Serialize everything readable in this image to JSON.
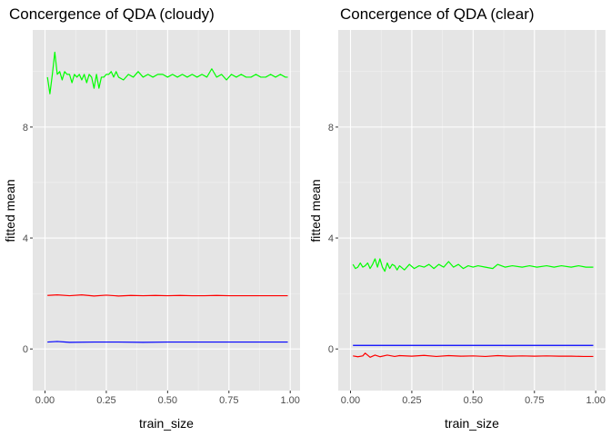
{
  "chart_data": [
    {
      "type": "line",
      "title": "Concergence of QDA (cloudy)",
      "xlabel": "train_size",
      "ylabel": "fitted mean",
      "xlim": [
        -0.05,
        1.04
      ],
      "ylim": [
        -1.5,
        11.5
      ],
      "x_ticks": [
        0,
        0.25,
        0.5,
        0.75,
        1
      ],
      "x_tick_labels": [
        "0.00",
        "0.25",
        "0.50",
        "0.75",
        "1.00"
      ],
      "y_ticks": [
        0,
        4,
        8
      ],
      "y_tick_labels": [
        "0",
        "4",
        "8"
      ],
      "grid": true,
      "legend": "none",
      "series": [
        {
          "color": "#00ff00",
          "x": [
            0.01,
            0.02,
            0.03,
            0.04,
            0.05,
            0.06,
            0.07,
            0.08,
            0.09,
            0.1,
            0.11,
            0.12,
            0.13,
            0.14,
            0.15,
            0.16,
            0.17,
            0.18,
            0.19,
            0.2,
            0.21,
            0.22,
            0.23,
            0.24,
            0.25,
            0.26,
            0.27,
            0.28,
            0.29,
            0.3,
            0.32,
            0.34,
            0.36,
            0.38,
            0.4,
            0.42,
            0.44,
            0.46,
            0.48,
            0.5,
            0.52,
            0.54,
            0.56,
            0.58,
            0.6,
            0.62,
            0.64,
            0.66,
            0.68,
            0.7,
            0.72,
            0.74,
            0.76,
            0.78,
            0.8,
            0.82,
            0.84,
            0.86,
            0.88,
            0.9,
            0.92,
            0.94,
            0.96,
            0.98,
            0.99
          ],
          "y": [
            9.8,
            9.2,
            9.9,
            10.7,
            9.9,
            10.0,
            9.7,
            10.0,
            9.9,
            9.9,
            9.6,
            9.9,
            9.8,
            9.9,
            9.7,
            9.9,
            9.6,
            9.9,
            9.8,
            9.4,
            9.9,
            9.4,
            9.8,
            9.8,
            9.9,
            9.9,
            10.0,
            9.8,
            10.0,
            9.8,
            9.7,
            9.9,
            9.8,
            10.0,
            9.8,
            9.9,
            9.8,
            9.9,
            9.9,
            9.8,
            9.9,
            9.8,
            9.9,
            9.8,
            9.9,
            9.8,
            9.9,
            9.8,
            10.1,
            9.8,
            9.9,
            9.7,
            9.9,
            9.8,
            9.9,
            9.8,
            9.8,
            9.9,
            9.8,
            9.8,
            9.9,
            9.8,
            9.9,
            9.8,
            9.8
          ]
        },
        {
          "color": "#ff0000",
          "x": [
            0.01,
            0.05,
            0.1,
            0.15,
            0.2,
            0.25,
            0.3,
            0.35,
            0.4,
            0.45,
            0.5,
            0.55,
            0.6,
            0.65,
            0.7,
            0.75,
            0.8,
            0.85,
            0.9,
            0.95,
            0.99
          ],
          "y": [
            1.93,
            1.95,
            1.92,
            1.95,
            1.91,
            1.94,
            1.91,
            1.93,
            1.92,
            1.93,
            1.92,
            1.93,
            1.92,
            1.92,
            1.93,
            1.92,
            1.92,
            1.92,
            1.92,
            1.92,
            1.92
          ]
        },
        {
          "color": "#0000ff",
          "x": [
            0.01,
            0.05,
            0.1,
            0.2,
            0.3,
            0.4,
            0.5,
            0.6,
            0.7,
            0.8,
            0.9,
            0.99
          ],
          "y": [
            0.25,
            0.27,
            0.24,
            0.25,
            0.25,
            0.24,
            0.25,
            0.25,
            0.25,
            0.25,
            0.25,
            0.25
          ]
        }
      ]
    },
    {
      "type": "line",
      "title": "Concergence of QDA (clear)",
      "xlabel": "train_size",
      "ylabel": "fitted mean",
      "xlim": [
        -0.05,
        1.04
      ],
      "ylim": [
        -1.5,
        11.5
      ],
      "x_ticks": [
        0,
        0.25,
        0.5,
        0.75,
        1
      ],
      "x_tick_labels": [
        "0.00",
        "0.25",
        "0.50",
        "0.75",
        "1.00"
      ],
      "y_ticks": [
        0,
        4,
        8
      ],
      "y_tick_labels": [
        "0",
        "4",
        "8"
      ],
      "grid": true,
      "legend": "none",
      "series": [
        {
          "color": "#00ff00",
          "x": [
            0.01,
            0.02,
            0.03,
            0.04,
            0.05,
            0.06,
            0.07,
            0.08,
            0.09,
            0.1,
            0.11,
            0.12,
            0.13,
            0.14,
            0.15,
            0.16,
            0.17,
            0.18,
            0.19,
            0.2,
            0.22,
            0.24,
            0.26,
            0.28,
            0.3,
            0.32,
            0.34,
            0.36,
            0.38,
            0.4,
            0.42,
            0.44,
            0.46,
            0.48,
            0.5,
            0.52,
            0.55,
            0.58,
            0.6,
            0.63,
            0.66,
            0.7,
            0.73,
            0.76,
            0.8,
            0.83,
            0.86,
            0.9,
            0.93,
            0.96,
            0.99
          ],
          "y": [
            3.05,
            2.9,
            2.95,
            3.1,
            2.95,
            3.0,
            3.1,
            2.9,
            3.05,
            3.25,
            2.95,
            3.25,
            2.95,
            2.8,
            3.1,
            2.9,
            3.05,
            3.0,
            2.85,
            3.0,
            2.85,
            3.05,
            2.9,
            3.0,
            2.95,
            3.05,
            2.9,
            3.05,
            2.95,
            3.15,
            2.95,
            3.05,
            2.9,
            3.0,
            2.95,
            3.0,
            2.95,
            2.9,
            3.05,
            2.95,
            3.0,
            2.95,
            3.0,
            2.95,
            3.0,
            2.95,
            3.0,
            2.95,
            3.0,
            2.95,
            2.95
          ]
        },
        {
          "color": "#0000ff",
          "x": [
            0.01,
            0.1,
            0.25,
            0.5,
            0.75,
            0.99
          ],
          "y": [
            0.13,
            0.13,
            0.13,
            0.13,
            0.13,
            0.13
          ]
        },
        {
          "color": "#ff0000",
          "x": [
            0.01,
            0.03,
            0.05,
            0.06,
            0.08,
            0.1,
            0.12,
            0.15,
            0.18,
            0.2,
            0.25,
            0.3,
            0.35,
            0.4,
            0.45,
            0.5,
            0.55,
            0.6,
            0.65,
            0.7,
            0.75,
            0.8,
            0.85,
            0.9,
            0.95,
            0.99
          ],
          "y": [
            -0.25,
            -0.28,
            -0.25,
            -0.15,
            -0.3,
            -0.22,
            -0.28,
            -0.22,
            -0.27,
            -0.24,
            -0.26,
            -0.23,
            -0.27,
            -0.24,
            -0.26,
            -0.25,
            -0.27,
            -0.24,
            -0.26,
            -0.25,
            -0.26,
            -0.25,
            -0.26,
            -0.26,
            -0.27,
            -0.27
          ]
        }
      ]
    }
  ]
}
